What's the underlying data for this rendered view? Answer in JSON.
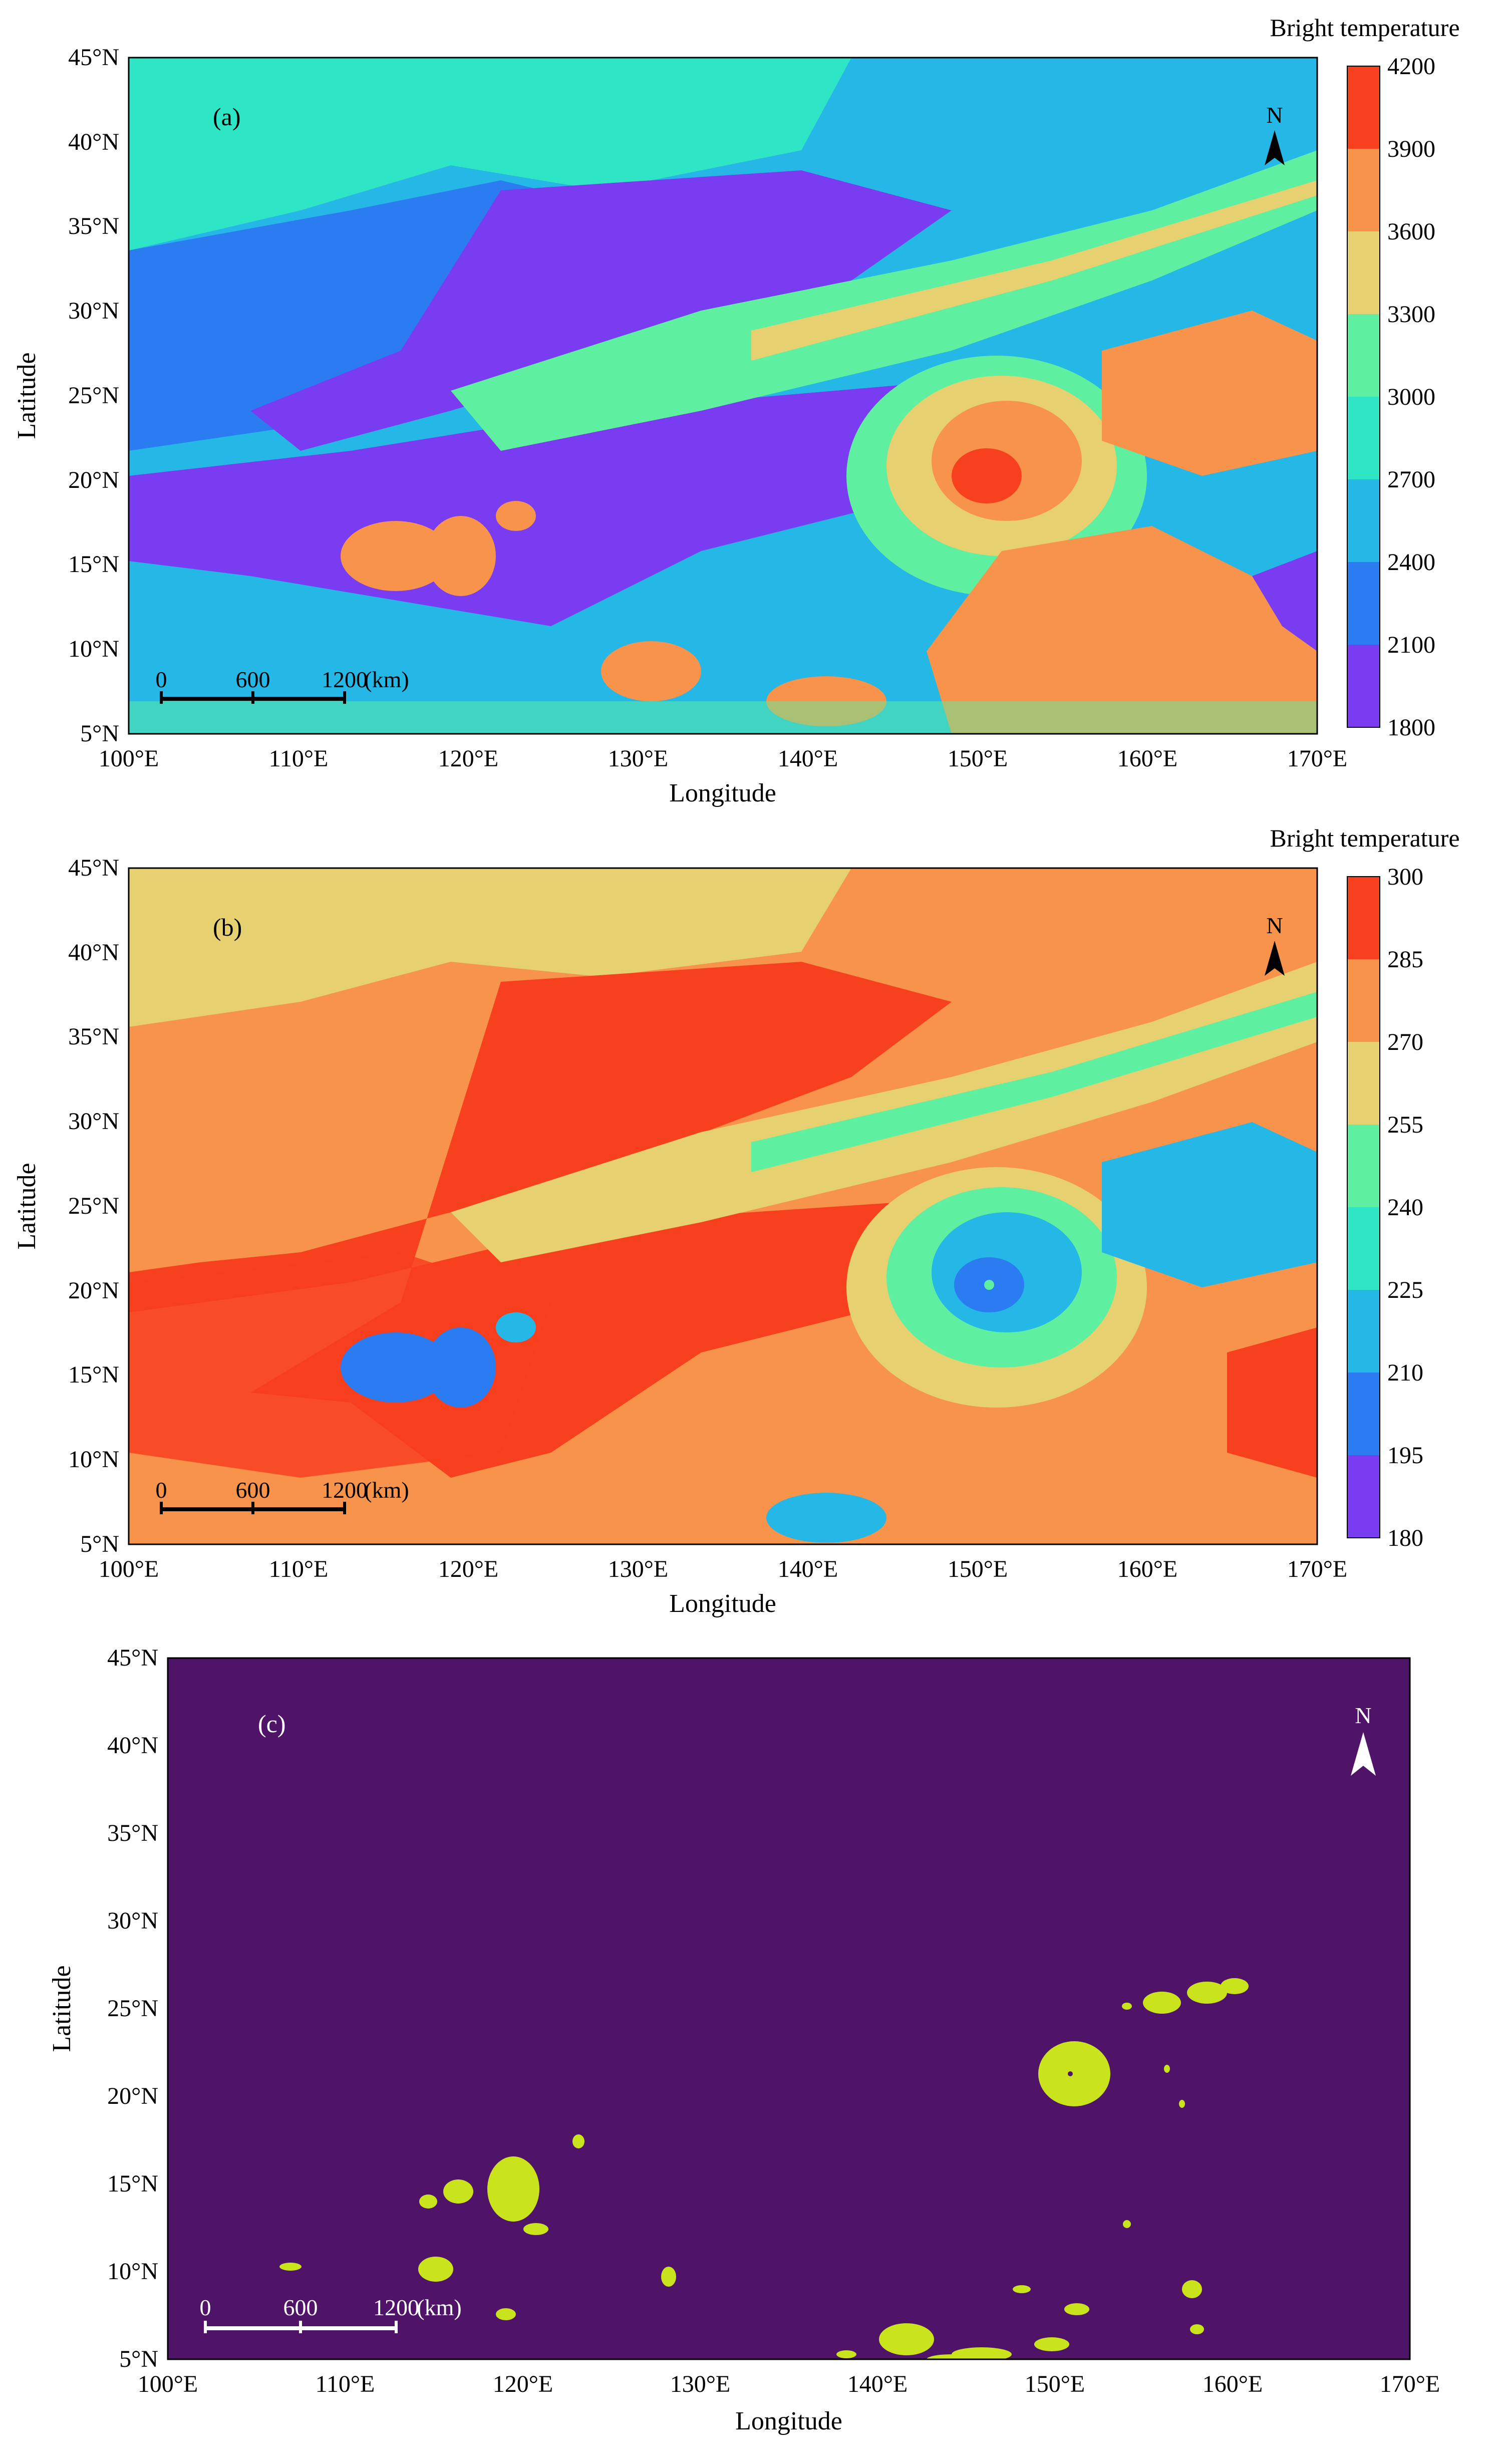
{
  "panels": [
    {
      "id": "a",
      "label": "(a)",
      "colorbar_title": "Bright temperature",
      "colorbar_ticks": [
        "1800",
        "2100",
        "2400",
        "2700",
        "3000",
        "3300",
        "3600",
        "3900",
        "4200"
      ],
      "colorbar_colors": [
        "#7a3cf0",
        "#2a7cf0",
        "#25b8e6",
        "#2ee6c6",
        "#5ef0a0",
        "#e6d070",
        "#f7934a",
        "#f7401e"
      ],
      "xlabel": "Longitude",
      "ylabel": "Latitude"
    },
    {
      "id": "b",
      "label": "(b)",
      "colorbar_title": "Bright temperature",
      "colorbar_ticks": [
        "180",
        "195",
        "210",
        "225",
        "240",
        "255",
        "270",
        "285",
        "300"
      ],
      "colorbar_colors": [
        "#7a3cf0",
        "#2a7cf0",
        "#25b8e6",
        "#2ee6c6",
        "#5ef0a0",
        "#e6d070",
        "#f7934a",
        "#f7401e"
      ],
      "xlabel": "Longitude",
      "ylabel": "Latitude"
    },
    {
      "id": "c",
      "label": "(c)",
      "xlabel": "Longitude",
      "ylabel": "Latitude"
    }
  ],
  "lon_ticks": [
    "100°E",
    "110°E",
    "120°E",
    "130°E",
    "140°E",
    "150°E",
    "160°E",
    "170°E"
  ],
  "lat_ticks": [
    "5°N",
    "10°N",
    "15°N",
    "20°N",
    "25°N",
    "30°N",
    "35°N",
    "40°N",
    "45°N"
  ],
  "scale_bar": {
    "labels": [
      "0",
      "600",
      "1200"
    ],
    "unit": "(km)"
  },
  "north_arrow": "N",
  "colors": {
    "mask_background": "#4f1368",
    "mask_foreground": "#c9e41c"
  }
}
